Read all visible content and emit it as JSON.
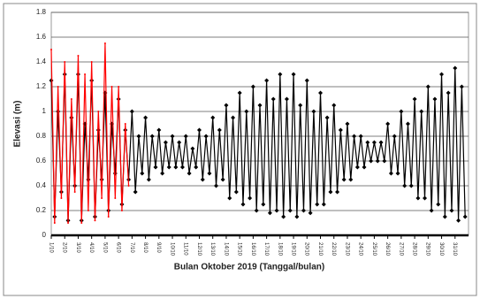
{
  "chart_data": {
    "type": "line",
    "xlabel": "Bulan Oktober 2019 (Tanggal/bulan)",
    "ylabel": "Elevasi (m)",
    "ylim": [
      0,
      1.8
    ],
    "yticks": [
      0,
      0.2,
      0.4,
      0.6,
      0.8,
      1,
      1.2,
      1.4,
      1.6,
      1.8
    ],
    "xlim": [
      1,
      32
    ],
    "xticks": [
      {
        "value": 1,
        "label": "1/10"
      },
      {
        "value": 2,
        "label": "2/10"
      },
      {
        "value": 3,
        "label": "3/10"
      },
      {
        "value": 4,
        "label": "4/10"
      },
      {
        "value": 5,
        "label": "5/10"
      },
      {
        "value": 6,
        "label": "6/10"
      },
      {
        "value": 7,
        "label": "7/10"
      },
      {
        "value": 8,
        "label": "8/10"
      },
      {
        "value": 9,
        "label": "9/10"
      },
      {
        "value": 10,
        "label": "10/10"
      },
      {
        "value": 11,
        "label": "11/10"
      },
      {
        "value": 12,
        "label": "12/10"
      },
      {
        "value": 13,
        "label": "13/10"
      },
      {
        "value": 14,
        "label": "14/10"
      },
      {
        "value": 15,
        "label": "15/10"
      },
      {
        "value": 16,
        "label": "16/10"
      },
      {
        "value": 17,
        "label": "17/10"
      },
      {
        "value": 18,
        "label": "18/10"
      },
      {
        "value": 19,
        "label": "19/10"
      },
      {
        "value": 20,
        "label": "20/10"
      },
      {
        "value": 21,
        "label": "21/10"
      },
      {
        "value": 22,
        "label": "22/10"
      },
      {
        "value": 23,
        "label": "23/10"
      },
      {
        "value": 24,
        "label": "24/10"
      },
      {
        "value": 25,
        "label": "25/10"
      },
      {
        "value": 26,
        "label": "26/10"
      },
      {
        "value": 27,
        "label": "27/10"
      },
      {
        "value": 28,
        "label": "28/10"
      },
      {
        "value": 29,
        "label": "29/10"
      },
      {
        "value": 30,
        "label": "30/10"
      },
      {
        "value": 31,
        "label": "31/10"
      }
    ],
    "grid": true,
    "series": [
      {
        "color": "#000000",
        "marker": true,
        "x": [
          1,
          1.25,
          1.5,
          1.75,
          2,
          2.25,
          2.5,
          2.75,
          3,
          3.25,
          3.5,
          3.75,
          4,
          4.25,
          4.5,
          4.75,
          5,
          5.25,
          5.5,
          5.75,
          6,
          6.25,
          6.5,
          6.75,
          7,
          7.25,
          7.5,
          7.75,
          8,
          8.25,
          8.5,
          8.75,
          9,
          9.25,
          9.5,
          9.75,
          10,
          10.25,
          10.5,
          10.75,
          11,
          11.25,
          11.5,
          11.75,
          12,
          12.25,
          12.5,
          12.75,
          13,
          13.25,
          13.5,
          13.75,
          14,
          14.25,
          14.5,
          14.75,
          15,
          15.25,
          15.5,
          15.75,
          16,
          16.25,
          16.5,
          16.75,
          17,
          17.25,
          17.5,
          17.75,
          18,
          18.25,
          18.5,
          18.75,
          19,
          19.25,
          19.5,
          19.75,
          20,
          20.25,
          20.5,
          20.75,
          21,
          21.25,
          21.5,
          21.75,
          22,
          22.25,
          22.5,
          22.75,
          23,
          23.25,
          23.5,
          23.75,
          24,
          24.25,
          24.5,
          24.75,
          25,
          25.25,
          25.5,
          25.75,
          26,
          26.25,
          26.5,
          26.75,
          27,
          27.25,
          27.5,
          27.75,
          28,
          28.25,
          28.5,
          28.75,
          29,
          29.25,
          29.5,
          29.75,
          30,
          30.25,
          30.5,
          30.75,
          31,
          31.25,
          31.5,
          31.75
        ],
        "values": [
          1.25,
          0.15,
          1.0,
          0.35,
          1.3,
          0.12,
          0.95,
          0.4,
          1.3,
          0.12,
          0.9,
          0.45,
          1.25,
          0.15,
          0.85,
          0.45,
          1.15,
          0.2,
          0.9,
          0.5,
          1.1,
          0.25,
          0.85,
          0.45,
          1.0,
          0.35,
          0.8,
          0.5,
          0.95,
          0.45,
          0.8,
          0.55,
          0.85,
          0.5,
          0.75,
          0.55,
          0.8,
          0.55,
          0.75,
          0.55,
          0.8,
          0.5,
          0.7,
          0.55,
          0.85,
          0.45,
          0.8,
          0.5,
          0.95,
          0.4,
          0.85,
          0.45,
          1.05,
          0.3,
          0.95,
          0.35,
          1.15,
          0.25,
          1.0,
          0.3,
          1.2,
          0.2,
          1.05,
          0.25,
          1.25,
          0.18,
          1.1,
          0.2,
          1.3,
          0.15,
          1.1,
          0.2,
          1.3,
          0.15,
          1.05,
          0.2,
          1.25,
          0.18,
          1.0,
          0.25,
          1.15,
          0.25,
          0.95,
          0.35,
          1.05,
          0.35,
          0.85,
          0.45,
          0.9,
          0.45,
          0.8,
          0.55,
          0.8,
          0.55,
          0.75,
          0.6,
          0.75,
          0.6,
          0.75,
          0.6,
          0.9,
          0.5,
          0.8,
          0.5,
          1.0,
          0.4,
          0.9,
          0.4,
          1.1,
          0.3,
          1.0,
          0.3,
          1.2,
          0.2,
          1.1,
          0.25,
          1.3,
          0.15,
          1.15,
          0.2,
          1.35,
          0.12,
          1.2,
          0.15
        ]
      },
      {
        "color": "#ff0000",
        "marker": false,
        "x": [
          1,
          1.25,
          1.5,
          1.75,
          2,
          2.25,
          2.5,
          2.75,
          3,
          3.25,
          3.5,
          3.75,
          4,
          4.25,
          4.5,
          4.75,
          5,
          5.25,
          5.5,
          5.75,
          6,
          6.25,
          6.5,
          6.75
        ],
        "values": [
          1.5,
          0.1,
          1.2,
          0.3,
          1.4,
          0.1,
          1.1,
          0.35,
          1.45,
          0.1,
          1.3,
          0.2,
          1.4,
          0.12,
          1.0,
          0.3,
          1.55,
          0.15,
          1.2,
          0.3,
          1.2,
          0.2,
          0.9,
          0.4
        ]
      }
    ]
  }
}
